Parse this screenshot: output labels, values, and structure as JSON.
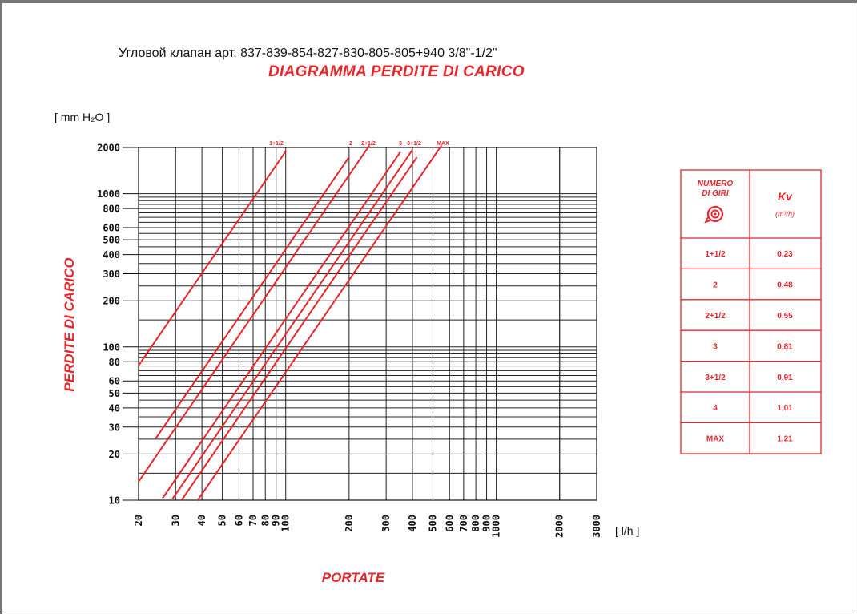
{
  "caption": "Угловой клапан арт. 837-839-854-827-830-805-805+940 3/8\"-1/2\"",
  "chart_data": {
    "type": "line",
    "title": "DIAGRAMMA PERDITE DI CARICO",
    "xlabel": "PORTATE",
    "ylabel": "PERDITE DI CARICO",
    "x_unit": "[ l/h ]",
    "y_unit": "[ mm H₂O ]",
    "x_scale": "log",
    "y_scale": "log",
    "xlim": [
      20,
      3000
    ],
    "ylim": [
      10,
      2000
    ],
    "grid": true,
    "x_ticks": [
      20,
      30,
      40,
      50,
      60,
      70,
      80,
      90,
      100,
      200,
      300,
      400,
      500,
      600,
      700,
      800,
      900,
      1000,
      2000,
      3000
    ],
    "x_tick_labels": [
      "20",
      "30",
      "40",
      "50",
      "60",
      "70",
      "80",
      "90",
      "100",
      "200",
      "300",
      "400",
      "500",
      "600",
      "700",
      "800",
      "900",
      "1000",
      "2000",
      "3000"
    ],
    "y_ticks": [
      10,
      20,
      30,
      40,
      50,
      60,
      80,
      100,
      200,
      300,
      400,
      500,
      600,
      800,
      1000,
      2000
    ],
    "y_tick_labels": [
      "10",
      "20",
      "30",
      "40",
      "50",
      "60",
      "80",
      "100",
      "200",
      "300",
      "400",
      "500",
      "600",
      "800",
      "1000",
      "2000"
    ],
    "series": [
      {
        "name": "1+1/2",
        "kv": 0.23,
        "x": [
          20,
          100
        ],
        "y": [
          75.6,
          1890
        ]
      },
      {
        "name": "2",
        "kv": 0.48,
        "x": [
          24,
          200
        ],
        "y": [
          25,
          1736
        ]
      },
      {
        "name": "2+1/2",
        "kv": 0.55,
        "x": [
          20,
          250
        ],
        "y": [
          13.2,
          2066
        ]
      },
      {
        "name": "3",
        "kv": 0.81,
        "x": [
          26,
          350
        ],
        "y": [
          10.3,
          1867
        ]
      },
      {
        "name": "3+1/2",
        "kv": 0.91,
        "x": [
          29,
          400
        ],
        "y": [
          10.2,
          1932
        ]
      },
      {
        "name": "4",
        "kv": 1.01,
        "x": [
          32,
          420
        ],
        "y": [
          10,
          1729
        ]
      },
      {
        "name": "MAX",
        "kv": 1.21,
        "x": [
          38,
          550
        ],
        "y": [
          9.9,
          2066
        ]
      }
    ],
    "annotations": [
      "1+1/2",
      "2",
      "2+1/2",
      "3",
      "3+1/2",
      "MAX"
    ],
    "line_color": "#e8252b"
  },
  "kv_table": {
    "header_col1_line1": "NUMERO",
    "header_col1_line2": "DI GIRI",
    "header_col2": "Kv",
    "header_col2_unit": "(m³/h)",
    "rows": [
      {
        "giri": "1+1/2",
        "kv": "0,23"
      },
      {
        "giri": "2",
        "kv": "0,48"
      },
      {
        "giri": "2+1/2",
        "kv": "0,55"
      },
      {
        "giri": "3",
        "kv": "0,81"
      },
      {
        "giri": "3+1/2",
        "kv": "0,91"
      },
      {
        "giri": "4",
        "kv": "1,01"
      },
      {
        "giri": "MAX",
        "kv": "1,21"
      }
    ],
    "icon": "handwheel-icon",
    "border_color": "#e8252b"
  }
}
